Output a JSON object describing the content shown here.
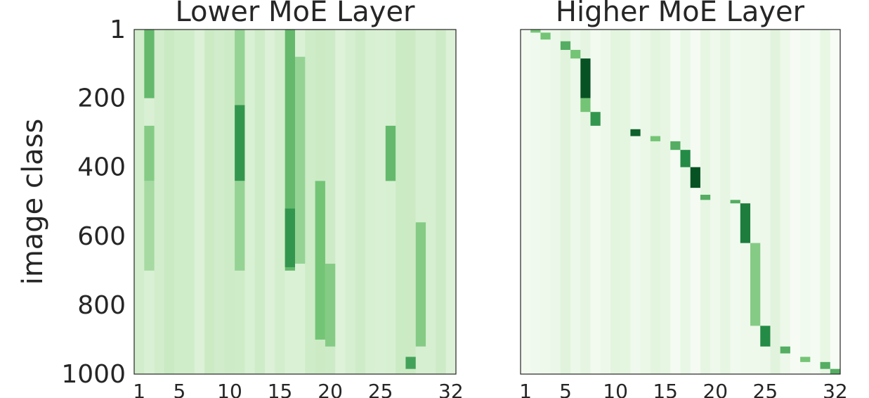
{
  "figure": {
    "ylabel": "image class"
  },
  "chart_data": [
    {
      "type": "heatmap",
      "title": "Lower MoE Layer",
      "xlabel": "",
      "ylabel": "image class",
      "x_range": [
        1,
        32
      ],
      "y_range": [
        1,
        1000
      ],
      "x_ticks": [
        "1",
        "5",
        "10",
        "15",
        "20",
        "25",
        "32"
      ],
      "y_ticks": [
        "1",
        "200",
        "400",
        "600",
        "800",
        "1000"
      ],
      "colormap": "Greens",
      "pattern": "diffuse",
      "dominant_experts": [
        {
          "expert": 2,
          "from": 1,
          "to": 200,
          "intensity": 0.55
        },
        {
          "expert": 2,
          "from": 280,
          "to": 440,
          "intensity": 0.45
        },
        {
          "expert": 2,
          "from": 440,
          "to": 700,
          "intensity": 0.35
        },
        {
          "expert": 11,
          "from": 1,
          "to": 220,
          "intensity": 0.4
        },
        {
          "expert": 11,
          "from": 220,
          "to": 440,
          "intensity": 0.7
        },
        {
          "expert": 11,
          "from": 440,
          "to": 700,
          "intensity": 0.4
        },
        {
          "expert": 16,
          "from": 1,
          "to": 700,
          "intensity": 0.55
        },
        {
          "expert": 16,
          "from": 520,
          "to": 690,
          "intensity": 0.7
        },
        {
          "expert": 17,
          "from": 80,
          "to": 680,
          "intensity": 0.4
        },
        {
          "expert": 19,
          "from": 440,
          "to": 900,
          "intensity": 0.5
        },
        {
          "expert": 20,
          "from": 680,
          "to": 920,
          "intensity": 0.45
        },
        {
          "expert": 26,
          "from": 280,
          "to": 440,
          "intensity": 0.55
        },
        {
          "expert": 28,
          "from": 950,
          "to": 985,
          "intensity": 0.65
        },
        {
          "expert": 29,
          "from": 560,
          "to": 920,
          "intensity": 0.45
        }
      ]
    },
    {
      "type": "heatmap",
      "title": "Higher MoE Layer",
      "xlabel": "",
      "ylabel": "",
      "x_range": [
        1,
        32
      ],
      "y_range": [
        1,
        1000
      ],
      "x_ticks": [
        "1",
        "5",
        "10",
        "15",
        "20",
        "25",
        "32"
      ],
      "y_ticks": [],
      "colormap": "Greens",
      "pattern": "diagonal",
      "dominant_experts": [
        {
          "expert": 2,
          "from": 1,
          "to": 10,
          "intensity": 0.5
        },
        {
          "expert": 3,
          "from": 10,
          "to": 30,
          "intensity": 0.5
        },
        {
          "expert": 5,
          "from": 35,
          "to": 60,
          "intensity": 0.6
        },
        {
          "expert": 6,
          "from": 60,
          "to": 85,
          "intensity": 0.5
        },
        {
          "expert": 7,
          "from": 85,
          "to": 200,
          "intensity": 0.95
        },
        {
          "expert": 7,
          "from": 200,
          "to": 240,
          "intensity": 0.5
        },
        {
          "expert": 8,
          "from": 240,
          "to": 280,
          "intensity": 0.7
        },
        {
          "expert": 12,
          "from": 290,
          "to": 310,
          "intensity": 0.9
        },
        {
          "expert": 14,
          "from": 310,
          "to": 325,
          "intensity": 0.5
        },
        {
          "expert": 16,
          "from": 325,
          "to": 350,
          "intensity": 0.6
        },
        {
          "expert": 17,
          "from": 350,
          "to": 400,
          "intensity": 0.75
        },
        {
          "expert": 18,
          "from": 400,
          "to": 460,
          "intensity": 0.95
        },
        {
          "expert": 19,
          "from": 480,
          "to": 495,
          "intensity": 0.6
        },
        {
          "expert": 22,
          "from": 495,
          "to": 505,
          "intensity": 0.6
        },
        {
          "expert": 23,
          "from": 505,
          "to": 620,
          "intensity": 0.8
        },
        {
          "expert": 24,
          "from": 620,
          "to": 860,
          "intensity": 0.45
        },
        {
          "expert": 25,
          "from": 860,
          "to": 920,
          "intensity": 0.75
        },
        {
          "expert": 27,
          "from": 920,
          "to": 940,
          "intensity": 0.6
        },
        {
          "expert": 29,
          "from": 950,
          "to": 965,
          "intensity": 0.5
        },
        {
          "expert": 31,
          "from": 965,
          "to": 985,
          "intensity": 0.6
        },
        {
          "expert": 32,
          "from": 985,
          "to": 1000,
          "intensity": 0.6
        }
      ]
    }
  ]
}
